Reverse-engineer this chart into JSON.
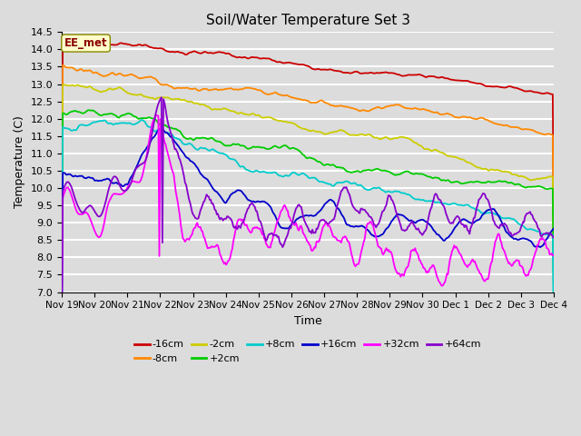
{
  "title": "Soil/Water Temperature Set 3",
  "xlabel": "Time",
  "ylabel": "Temperature (C)",
  "ylim": [
    7.0,
    14.5
  ],
  "yticks": [
    7.0,
    7.5,
    8.0,
    8.5,
    9.0,
    9.5,
    10.0,
    10.5,
    11.0,
    11.5,
    12.0,
    12.5,
    13.0,
    13.5,
    14.0,
    14.5
  ],
  "background_color": "#dcdcdc",
  "plot_bg_color": "#dcdcdc",
  "grid_color": "#ffffff",
  "series": [
    {
      "label": "-16cm",
      "color": "#cc0000"
    },
    {
      "label": "-8cm",
      "color": "#ff8800"
    },
    {
      "label": "-2cm",
      "color": "#cccc00"
    },
    {
      "label": "+2cm",
      "color": "#00cc00"
    },
    {
      "label": "+8cm",
      "color": "#00cccc"
    },
    {
      "label": "+16cm",
      "color": "#0000cc"
    },
    {
      "label": "+32cm",
      "color": "#ff00ff"
    },
    {
      "label": "+64cm",
      "color": "#8800cc"
    }
  ],
  "n_points": 480,
  "x_tick_labels": [
    "Nov 19",
    "Nov 20",
    "Nov 21",
    "Nov 22",
    "Nov 23",
    "Nov 24",
    "Nov 25",
    "Nov 26",
    "Nov 27",
    "Nov 28",
    "Nov 29",
    "Nov 30",
    "Dec 1",
    "Dec 2",
    "Dec 3",
    "Dec 4"
  ],
  "watermark": "EE_met",
  "watermark_color": "#8b0000",
  "watermark_bg": "#ffffcc"
}
